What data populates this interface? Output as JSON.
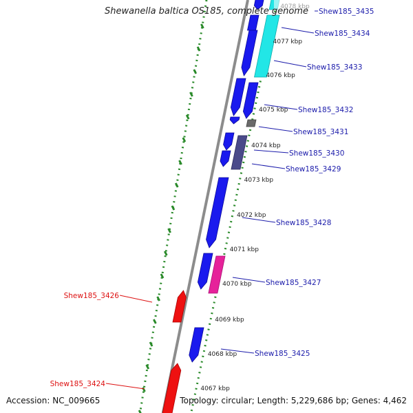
{
  "title": "Shewanella baltica OS185, complete genome",
  "accession": "Accession: NC_009665",
  "summary": "Topology: circular; Length: 5,229,686 bp; Genes: 4,462",
  "colors": {
    "backbone": "#8c8c8c",
    "ticks": "#2a8a2a",
    "forward_gene": "#1a1aee",
    "reverse_gene": "#ee1111",
    "forward_label": "#1a1aaa",
    "reverse_label": "#dd1111",
    "cyan_feature": "#22e6e6",
    "magenta_feature": "#e6229a",
    "dark_feature": "#4a4a8a",
    "gray_feature": "#6a6a6a"
  },
  "scale_labels": [
    "4078 kbp",
    "4077 kbp",
    "4076 kbp",
    "4075 kbp",
    "4074 kbp",
    "4073 kbp",
    "4072 kbp",
    "4071 kbp",
    "4070 kbp",
    "4069 kbp",
    "4068 kbp",
    "4067 kbp"
  ],
  "gene_labels": [
    {
      "text": "Shew185_3435",
      "strand": "forward"
    },
    {
      "text": "Shew185_3434",
      "strand": "forward"
    },
    {
      "text": "Shew185_3433",
      "strand": "forward"
    },
    {
      "text": "Shew185_3432",
      "strand": "forward"
    },
    {
      "text": "Shew185_3431",
      "strand": "forward"
    },
    {
      "text": "Shew185_3430",
      "strand": "forward"
    },
    {
      "text": "Shew185_3429",
      "strand": "forward"
    },
    {
      "text": "Shew185_3428",
      "strand": "forward"
    },
    {
      "text": "Shew185_3427",
      "strand": "forward"
    },
    {
      "text": "Shew185_3426",
      "strand": "reverse"
    },
    {
      "text": "Shew185_3425",
      "strand": "forward"
    },
    {
      "text": "Shew185_3424",
      "strand": "reverse"
    }
  ]
}
